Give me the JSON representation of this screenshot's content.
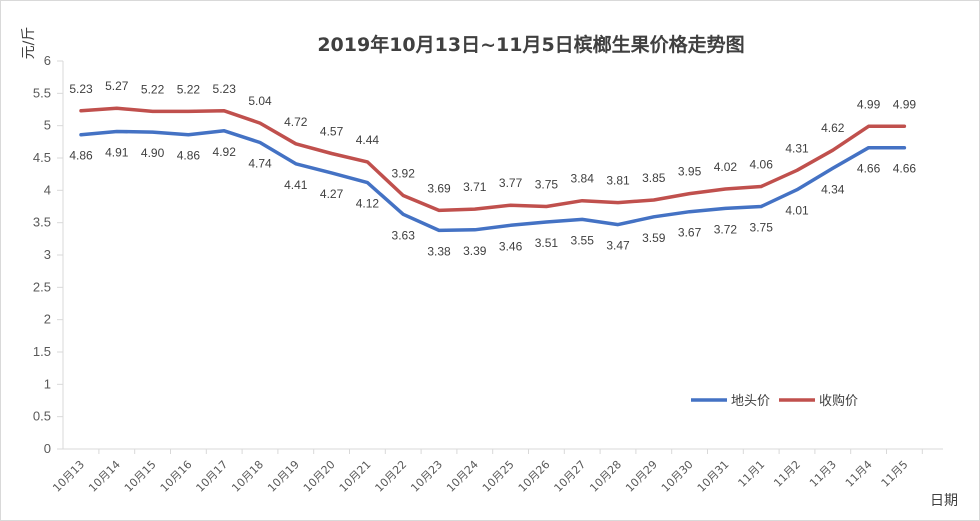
{
  "chart_data": {
    "type": "line",
    "title": "2019年10月13日~11月5日槟榔生果价格走势图",
    "xlabel": "日期",
    "ylabel": "元/斤",
    "ylim": [
      0,
      6
    ],
    "yticks": [
      "0",
      "0.5",
      "1",
      "1.5",
      "2",
      "2.5",
      "3",
      "3.5",
      "4",
      "4.5",
      "5",
      "5.5",
      "6"
    ],
    "categories": [
      "10月13",
      "10月14",
      "10月15",
      "10月16",
      "10月17",
      "10月18",
      "10月19",
      "10月20",
      "10月21",
      "10月22",
      "10月23",
      "10月24",
      "10月25",
      "10月26",
      "10月27",
      "10月28",
      "10月29",
      "10月30",
      "10月31",
      "11月1",
      "11月2",
      "11月3",
      "11月4",
      "11月5"
    ],
    "series": [
      {
        "name": "地头价",
        "color": "#4472c4",
        "values": [
          4.86,
          4.91,
          4.9,
          4.86,
          4.92,
          4.74,
          4.41,
          4.27,
          4.12,
          3.63,
          3.38,
          3.39,
          3.46,
          3.51,
          3.55,
          3.47,
          3.59,
          3.67,
          3.72,
          3.75,
          4.01,
          4.34,
          4.66,
          4.66
        ],
        "labels": [
          "4.86",
          "4.91",
          "4.90",
          "4.86",
          "4.92",
          "4.74",
          "4.41",
          "4.27",
          "4.12",
          "3.63",
          "3.38",
          "3.39",
          "3.46",
          "3.51",
          "3.55",
          "3.47",
          "3.59",
          "3.67",
          "3.72",
          "3.75",
          "4.01",
          "4.34",
          "4.66",
          "4.66"
        ]
      },
      {
        "name": "收购价",
        "color": "#c0504d",
        "values": [
          5.23,
          5.27,
          5.22,
          5.22,
          5.23,
          5.04,
          4.72,
          4.57,
          4.44,
          3.92,
          3.69,
          3.71,
          3.77,
          3.75,
          3.84,
          3.81,
          3.85,
          3.95,
          4.02,
          4.06,
          4.31,
          4.62,
          4.99,
          4.99
        ],
        "labels": [
          "5.23",
          "5.27",
          "5.22",
          "5.22",
          "5.23",
          "5.04",
          "4.72",
          "4.57",
          "4.44",
          "3.92",
          "3.69",
          "3.71",
          "3.77",
          "3.75",
          "3.84",
          "3.81",
          "3.85",
          "3.95",
          "4.02",
          "4.06",
          "4.31",
          "4.62",
          "4.99",
          "4.99"
        ]
      }
    ],
    "legend_position": "bottom-right",
    "grid": false
  }
}
